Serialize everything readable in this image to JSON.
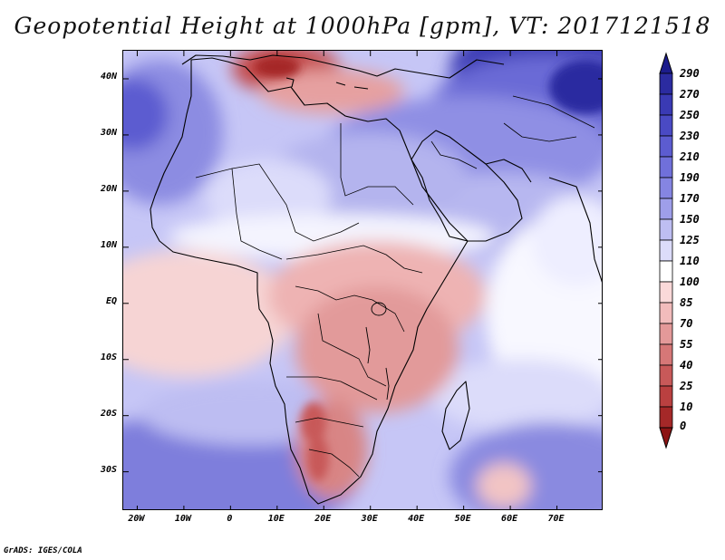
{
  "title": "Geopotential Height at 1000hPa [gpm], VT: 2017121518",
  "credit": "GrADS: IGES/COLA",
  "map": {
    "variable": "Geopotential Height",
    "level": "1000hPa",
    "units": "gpm",
    "valid_time": "2017121518",
    "lon_range": [
      -23,
      80
    ],
    "lat_range": [
      -37,
      45
    ],
    "lat_ticks": [
      {
        "value": 40,
        "label": "40N"
      },
      {
        "value": 30,
        "label": "30N"
      },
      {
        "value": 20,
        "label": "20N"
      },
      {
        "value": 10,
        "label": "10N"
      },
      {
        "value": 0,
        "label": "EQ"
      },
      {
        "value": -10,
        "label": "10S"
      },
      {
        "value": -20,
        "label": "20S"
      },
      {
        "value": -30,
        "label": "30S"
      }
    ],
    "lon_ticks": [
      {
        "value": -20,
        "label": "20W"
      },
      {
        "value": -10,
        "label": "10W"
      },
      {
        "value": 0,
        "label": "0"
      },
      {
        "value": 10,
        "label": "10E"
      },
      {
        "value": 20,
        "label": "20E"
      },
      {
        "value": 30,
        "label": "30E"
      },
      {
        "value": 40,
        "label": "40E"
      },
      {
        "value": 50,
        "label": "50E"
      },
      {
        "value": 60,
        "label": "60E"
      },
      {
        "value": 70,
        "label": "70E"
      }
    ]
  },
  "colorbar": {
    "labels": [
      "290",
      "270",
      "250",
      "230",
      "210",
      "190",
      "170",
      "150",
      "125",
      "110",
      "100",
      "85",
      "70",
      "55",
      "40",
      "25",
      "10",
      "0"
    ],
    "colors": [
      "#1c1c8c",
      "#2b2ba0",
      "#3a3ab4",
      "#4a4ac4",
      "#5c5cd0",
      "#7070da",
      "#8585e2",
      "#9e9eea",
      "#bebef2",
      "#dcdcfa",
      "#ffffff",
      "#fad9d9",
      "#f2bcbc",
      "#e49999",
      "#d67777",
      "#c85959",
      "#ba4040",
      "#a52828",
      "#8c1414"
    ],
    "top_color": "#1c1c8c",
    "bottom_color": "#8c1414"
  }
}
